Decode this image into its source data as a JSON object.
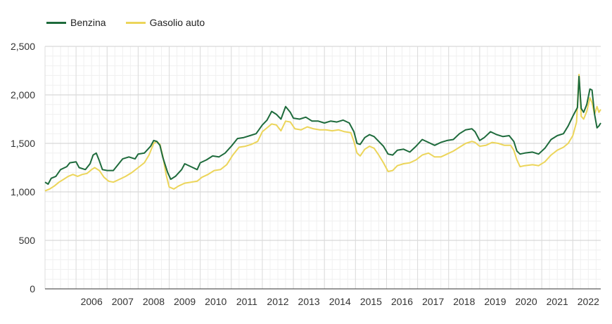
{
  "chart_data": {
    "type": "line",
    "title": "",
    "xlabel": "",
    "ylabel": "",
    "ylim": [
      0,
      2500
    ],
    "xlim": [
      2005.0,
      2022.9
    ],
    "y_ticks": [
      "0",
      "500",
      "1,000",
      "1,500",
      "2,000",
      "2,500"
    ],
    "y_tick_values": [
      0,
      500,
      1000,
      1500,
      2000,
      2500
    ],
    "x_ticks": [
      "2006",
      "2007",
      "2008",
      "2009",
      "2010",
      "2011",
      "2012",
      "2013",
      "2014",
      "2015",
      "2016",
      "2017",
      "2018",
      "2019",
      "2020",
      "2021",
      "2022"
    ],
    "grid": true,
    "legend_position": "top-left",
    "series": [
      {
        "name": "Benzina",
        "color": "#1e6b3c",
        "points": [
          [
            2005.0,
            1100
          ],
          [
            2005.1,
            1080
          ],
          [
            2005.2,
            1140
          ],
          [
            2005.35,
            1160
          ],
          [
            2005.5,
            1230
          ],
          [
            2005.7,
            1260
          ],
          [
            2005.8,
            1300
          ],
          [
            2006.0,
            1310
          ],
          [
            2006.1,
            1250
          ],
          [
            2006.3,
            1230
          ],
          [
            2006.45,
            1290
          ],
          [
            2006.55,
            1380
          ],
          [
            2006.65,
            1400
          ],
          [
            2006.75,
            1320
          ],
          [
            2006.85,
            1230
          ],
          [
            2007.0,
            1220
          ],
          [
            2007.2,
            1220
          ],
          [
            2007.35,
            1280
          ],
          [
            2007.5,
            1340
          ],
          [
            2007.7,
            1360
          ],
          [
            2007.9,
            1340
          ],
          [
            2008.0,
            1390
          ],
          [
            2008.2,
            1400
          ],
          [
            2008.4,
            1470
          ],
          [
            2008.5,
            1530
          ],
          [
            2008.6,
            1520
          ],
          [
            2008.7,
            1480
          ],
          [
            2008.8,
            1350
          ],
          [
            2008.95,
            1200
          ],
          [
            2009.05,
            1130
          ],
          [
            2009.2,
            1160
          ],
          [
            2009.4,
            1230
          ],
          [
            2009.5,
            1290
          ],
          [
            2009.7,
            1260
          ],
          [
            2009.9,
            1230
          ],
          [
            2010.0,
            1300
          ],
          [
            2010.2,
            1330
          ],
          [
            2010.4,
            1370
          ],
          [
            2010.6,
            1360
          ],
          [
            2010.8,
            1400
          ],
          [
            2011.0,
            1470
          ],
          [
            2011.2,
            1550
          ],
          [
            2011.4,
            1560
          ],
          [
            2011.6,
            1580
          ],
          [
            2011.8,
            1600
          ],
          [
            2012.0,
            1690
          ],
          [
            2012.15,
            1740
          ],
          [
            2012.3,
            1830
          ],
          [
            2012.45,
            1800
          ],
          [
            2012.6,
            1750
          ],
          [
            2012.75,
            1880
          ],
          [
            2012.9,
            1820
          ],
          [
            2013.0,
            1760
          ],
          [
            2013.2,
            1750
          ],
          [
            2013.4,
            1770
          ],
          [
            2013.6,
            1730
          ],
          [
            2013.8,
            1730
          ],
          [
            2014.0,
            1710
          ],
          [
            2014.2,
            1730
          ],
          [
            2014.4,
            1720
          ],
          [
            2014.6,
            1740
          ],
          [
            2014.8,
            1710
          ],
          [
            2014.95,
            1620
          ],
          [
            2015.05,
            1500
          ],
          [
            2015.15,
            1490
          ],
          [
            2015.3,
            1560
          ],
          [
            2015.45,
            1590
          ],
          [
            2015.6,
            1570
          ],
          [
            2015.75,
            1520
          ],
          [
            2015.9,
            1470
          ],
          [
            2016.05,
            1390
          ],
          [
            2016.2,
            1380
          ],
          [
            2016.35,
            1430
          ],
          [
            2016.55,
            1440
          ],
          [
            2016.75,
            1410
          ],
          [
            2016.95,
            1470
          ],
          [
            2017.15,
            1540
          ],
          [
            2017.35,
            1510
          ],
          [
            2017.55,
            1480
          ],
          [
            2017.75,
            1510
          ],
          [
            2017.95,
            1530
          ],
          [
            2018.15,
            1540
          ],
          [
            2018.35,
            1600
          ],
          [
            2018.55,
            1640
          ],
          [
            2018.75,
            1650
          ],
          [
            2018.85,
            1620
          ],
          [
            2019.0,
            1530
          ],
          [
            2019.15,
            1560
          ],
          [
            2019.35,
            1620
          ],
          [
            2019.55,
            1590
          ],
          [
            2019.75,
            1570
          ],
          [
            2019.95,
            1580
          ],
          [
            2020.1,
            1520
          ],
          [
            2020.2,
            1420
          ],
          [
            2020.3,
            1390
          ],
          [
            2020.45,
            1400
          ],
          [
            2020.7,
            1410
          ],
          [
            2020.9,
            1390
          ],
          [
            2021.1,
            1450
          ],
          [
            2021.3,
            1540
          ],
          [
            2021.5,
            1580
          ],
          [
            2021.7,
            1600
          ],
          [
            2021.85,
            1680
          ],
          [
            2022.0,
            1780
          ],
          [
            2022.15,
            1870
          ],
          [
            2022.2,
            2190
          ],
          [
            2022.27,
            1860
          ],
          [
            2022.35,
            1820
          ],
          [
            2022.45,
            1900
          ],
          [
            2022.55,
            2060
          ],
          [
            2022.62,
            2050
          ],
          [
            2022.7,
            1800
          ],
          [
            2022.78,
            1660
          ],
          [
            2022.84,
            1680
          ],
          [
            2022.9,
            1710
          ]
        ]
      },
      {
        "name": "Gasolio auto",
        "color": "#ecd55a",
        "points": [
          [
            2005.0,
            1010
          ],
          [
            2005.15,
            1030
          ],
          [
            2005.3,
            1060
          ],
          [
            2005.45,
            1100
          ],
          [
            2005.6,
            1130
          ],
          [
            2005.75,
            1160
          ],
          [
            2005.9,
            1180
          ],
          [
            2006.05,
            1160
          ],
          [
            2006.2,
            1180
          ],
          [
            2006.35,
            1190
          ],
          [
            2006.5,
            1230
          ],
          [
            2006.6,
            1250
          ],
          [
            2006.75,
            1220
          ],
          [
            2006.9,
            1150
          ],
          [
            2007.05,
            1110
          ],
          [
            2007.2,
            1100
          ],
          [
            2007.4,
            1130
          ],
          [
            2007.6,
            1160
          ],
          [
            2007.8,
            1200
          ],
          [
            2008.0,
            1250
          ],
          [
            2008.2,
            1300
          ],
          [
            2008.35,
            1380
          ],
          [
            2008.5,
            1500
          ],
          [
            2008.6,
            1520
          ],
          [
            2008.7,
            1490
          ],
          [
            2008.8,
            1360
          ],
          [
            2008.9,
            1180
          ],
          [
            2009.0,
            1050
          ],
          [
            2009.15,
            1030
          ],
          [
            2009.3,
            1060
          ],
          [
            2009.5,
            1090
          ],
          [
            2009.7,
            1100
          ],
          [
            2009.9,
            1110
          ],
          [
            2010.05,
            1150
          ],
          [
            2010.25,
            1180
          ],
          [
            2010.45,
            1220
          ],
          [
            2010.65,
            1230
          ],
          [
            2010.85,
            1280
          ],
          [
            2011.05,
            1380
          ],
          [
            2011.25,
            1460
          ],
          [
            2011.45,
            1470
          ],
          [
            2011.65,
            1490
          ],
          [
            2011.85,
            1520
          ],
          [
            2012.0,
            1620
          ],
          [
            2012.15,
            1660
          ],
          [
            2012.3,
            1700
          ],
          [
            2012.45,
            1690
          ],
          [
            2012.6,
            1630
          ],
          [
            2012.75,
            1730
          ],
          [
            2012.9,
            1720
          ],
          [
            2013.05,
            1650
          ],
          [
            2013.25,
            1640
          ],
          [
            2013.45,
            1670
          ],
          [
            2013.65,
            1650
          ],
          [
            2013.85,
            1640
          ],
          [
            2014.05,
            1640
          ],
          [
            2014.25,
            1630
          ],
          [
            2014.45,
            1640
          ],
          [
            2014.65,
            1620
          ],
          [
            2014.85,
            1610
          ],
          [
            2014.95,
            1520
          ],
          [
            2015.05,
            1400
          ],
          [
            2015.15,
            1370
          ],
          [
            2015.3,
            1440
          ],
          [
            2015.45,
            1470
          ],
          [
            2015.6,
            1450
          ],
          [
            2015.75,
            1380
          ],
          [
            2015.9,
            1300
          ],
          [
            2016.05,
            1210
          ],
          [
            2016.2,
            1220
          ],
          [
            2016.35,
            1270
          ],
          [
            2016.55,
            1290
          ],
          [
            2016.75,
            1300
          ],
          [
            2016.95,
            1330
          ],
          [
            2017.15,
            1380
          ],
          [
            2017.35,
            1400
          ],
          [
            2017.55,
            1360
          ],
          [
            2017.75,
            1360
          ],
          [
            2017.95,
            1390
          ],
          [
            2018.15,
            1420
          ],
          [
            2018.35,
            1460
          ],
          [
            2018.55,
            1500
          ],
          [
            2018.75,
            1520
          ],
          [
            2018.85,
            1510
          ],
          [
            2019.0,
            1470
          ],
          [
            2019.2,
            1480
          ],
          [
            2019.4,
            1510
          ],
          [
            2019.6,
            1500
          ],
          [
            2019.8,
            1480
          ],
          [
            2020.0,
            1480
          ],
          [
            2020.1,
            1430
          ],
          [
            2020.2,
            1330
          ],
          [
            2020.3,
            1260
          ],
          [
            2020.45,
            1270
          ],
          [
            2020.7,
            1280
          ],
          [
            2020.9,
            1270
          ],
          [
            2021.1,
            1310
          ],
          [
            2021.3,
            1380
          ],
          [
            2021.5,
            1430
          ],
          [
            2021.7,
            1460
          ],
          [
            2021.85,
            1500
          ],
          [
            2022.0,
            1580
          ],
          [
            2022.12,
            1720
          ],
          [
            2022.2,
            2210
          ],
          [
            2022.27,
            1780
          ],
          [
            2022.35,
            1750
          ],
          [
            2022.45,
            1830
          ],
          [
            2022.55,
            1970
          ],
          [
            2022.62,
            1920
          ],
          [
            2022.7,
            1800
          ],
          [
            2022.78,
            1880
          ],
          [
            2022.84,
            1820
          ],
          [
            2022.9,
            1850
          ]
        ]
      }
    ]
  }
}
